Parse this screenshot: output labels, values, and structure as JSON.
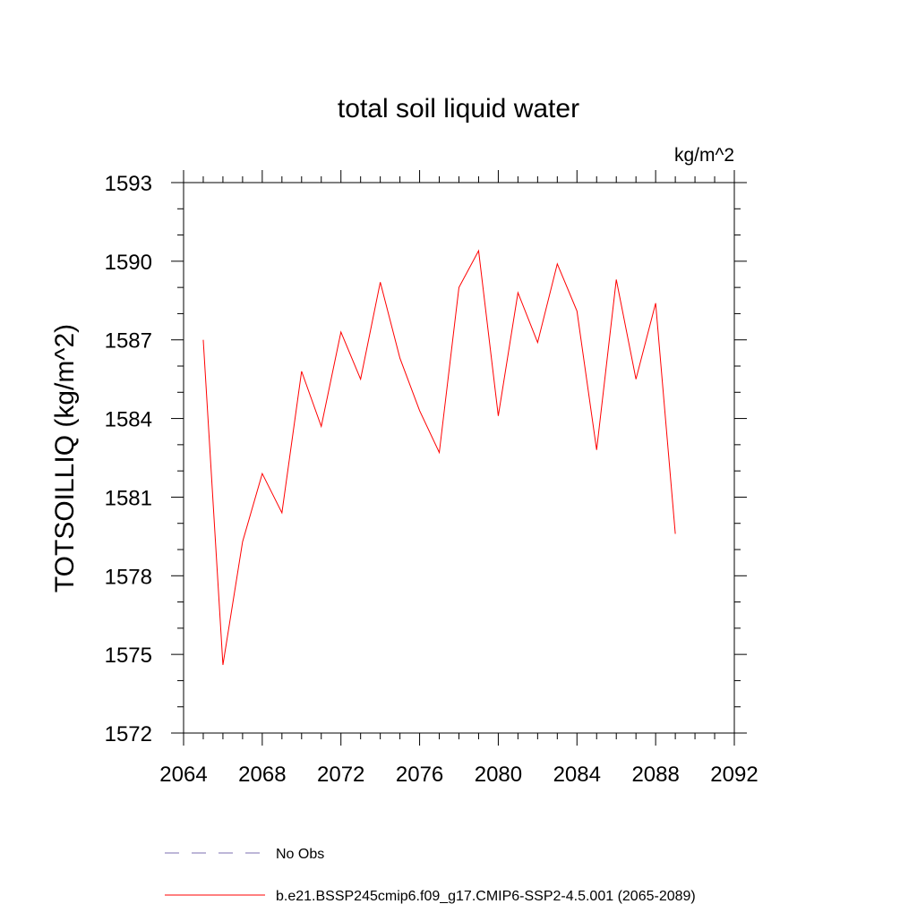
{
  "chart_data": {
    "type": "line",
    "title": "total soil liquid water",
    "units_label": "kg/m^2",
    "ylabel": "TOTSOILLIQ  (kg/m^2)",
    "xlabel": "",
    "xlim": [
      2064,
      2092
    ],
    "ylim": [
      1572,
      1593
    ],
    "x_ticks": [
      2064,
      2068,
      2072,
      2076,
      2080,
      2084,
      2088,
      2092
    ],
    "x_tick_labels": [
      "2064",
      "2068",
      "2072",
      "2076",
      "2080",
      "2084",
      "2088",
      "2092"
    ],
    "y_ticks": [
      1572,
      1575,
      1578,
      1581,
      1584,
      1587,
      1590,
      1593
    ],
    "y_tick_labels": [
      "1572",
      "1575",
      "1578",
      "1581",
      "1584",
      "1587",
      "1590",
      "1593"
    ],
    "grid": false,
    "legend_position": "bottom",
    "series": [
      {
        "name": "b.e21.BSSP245cmip6.f09_g17.CMIP6-SSP2-4.5.001 (2065-2089)",
        "color": "#ff0000",
        "style": "solid",
        "x": [
          2065,
          2066,
          2067,
          2068,
          2069,
          2070,
          2071,
          2072,
          2073,
          2074,
          2075,
          2076,
          2077,
          2078,
          2079,
          2080,
          2081,
          2082,
          2083,
          2084,
          2085,
          2086,
          2087,
          2088,
          2089
        ],
        "y": [
          1587.0,
          1574.6,
          1579.3,
          1581.9,
          1580.4,
          1585.8,
          1583.7,
          1587.3,
          1585.5,
          1589.2,
          1586.3,
          1584.3,
          1582.7,
          1589.0,
          1590.4,
          1584.1,
          1588.8,
          1586.9,
          1589.9,
          1588.1,
          1582.8,
          1589.3,
          1585.5,
          1588.4,
          1579.6
        ]
      }
    ],
    "legend": [
      {
        "label": "No Obs",
        "color": "#7b6fb0",
        "style": "dashed"
      },
      {
        "label": "b.e21.BSSP245cmip6.f09_g17.CMIP6-SSP2-4.5.001 (2065-2089)",
        "color": "#ff0000",
        "style": "solid"
      }
    ]
  }
}
